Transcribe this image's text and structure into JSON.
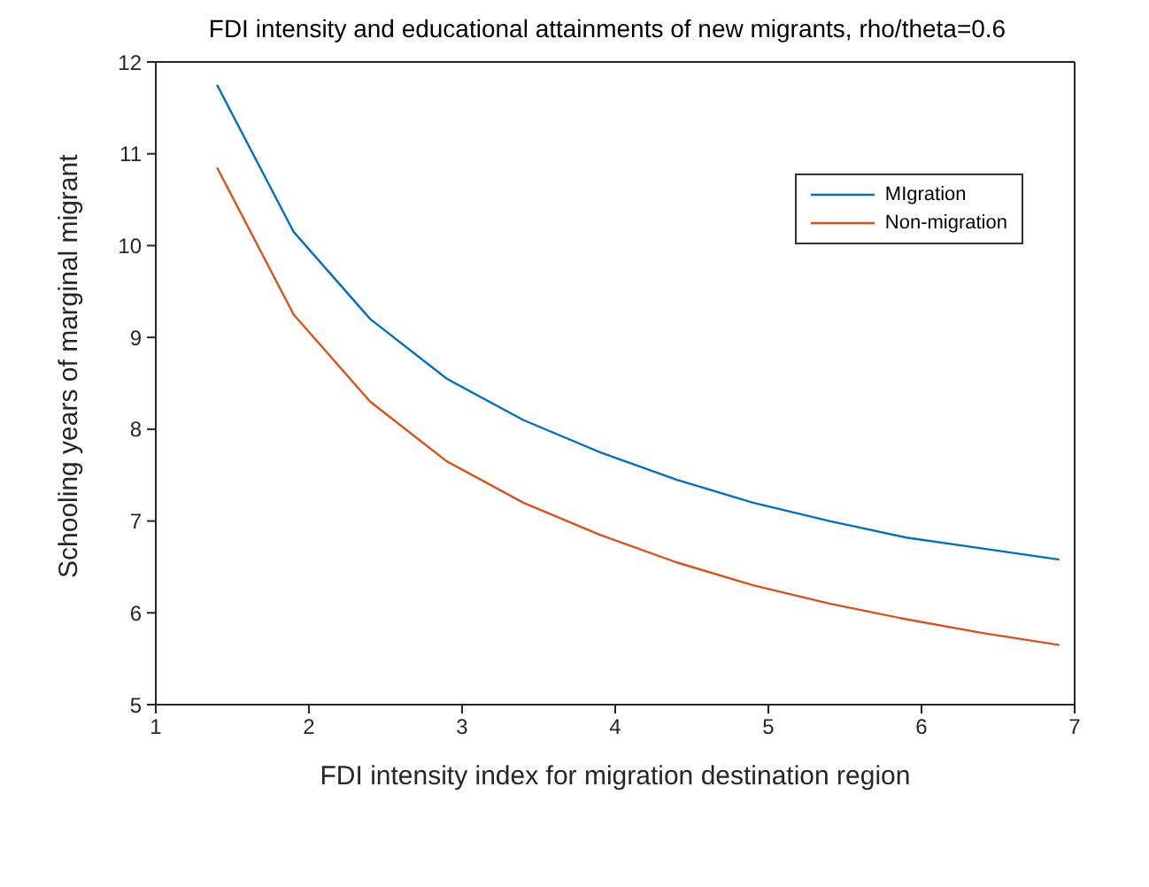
{
  "chart_data": {
    "type": "line",
    "title": "FDI intensity and educational attainments of new migrants, rho/theta=0.6",
    "xlabel": "FDI intensity index for migration destination region",
    "ylabel": "Schooling years of marginal migrant",
    "x": [
      1.4,
      1.9,
      2.4,
      2.9,
      3.4,
      3.9,
      4.4,
      4.9,
      5.4,
      5.9,
      6.4,
      6.9
    ],
    "series": [
      {
        "name": "MIgration",
        "color": "#0072bd",
        "values": [
          11.75,
          10.15,
          9.2,
          8.55,
          8.1,
          7.75,
          7.45,
          7.2,
          7.0,
          6.82,
          6.7,
          6.58
        ]
      },
      {
        "name": "Non-migration",
        "color": "#d95319",
        "values": [
          10.85,
          9.25,
          8.3,
          7.65,
          7.2,
          6.85,
          6.55,
          6.3,
          6.1,
          5.93,
          5.78,
          5.65
        ]
      }
    ],
    "xlim": [
      1,
      7
    ],
    "xticks": [
      1,
      2,
      3,
      4,
      5,
      6,
      7
    ],
    "ylim": [
      5,
      12
    ],
    "yticks": [
      5,
      6,
      7,
      8,
      9,
      10,
      11,
      12
    ],
    "grid": false,
    "legend": "top right",
    "marker": "none",
    "line_style": "solid"
  }
}
